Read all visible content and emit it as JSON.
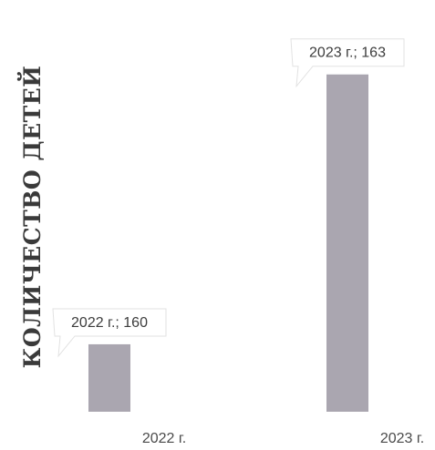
{
  "chart_data": {
    "type": "bar",
    "categories": [
      "2022 г.",
      "2023 г."
    ],
    "values": [
      160,
      163
    ],
    "ylabel": "КОЛИЧЕСТВО ДЕТЕЙ",
    "xlabel": "",
    "title": "",
    "data_labels": [
      "2022 г.; 160",
      "2023 г.; 163"
    ],
    "ylim": [
      159.25,
      163.22
    ],
    "grid": false,
    "legend": "none",
    "bar_color": "#aaa6b0"
  }
}
